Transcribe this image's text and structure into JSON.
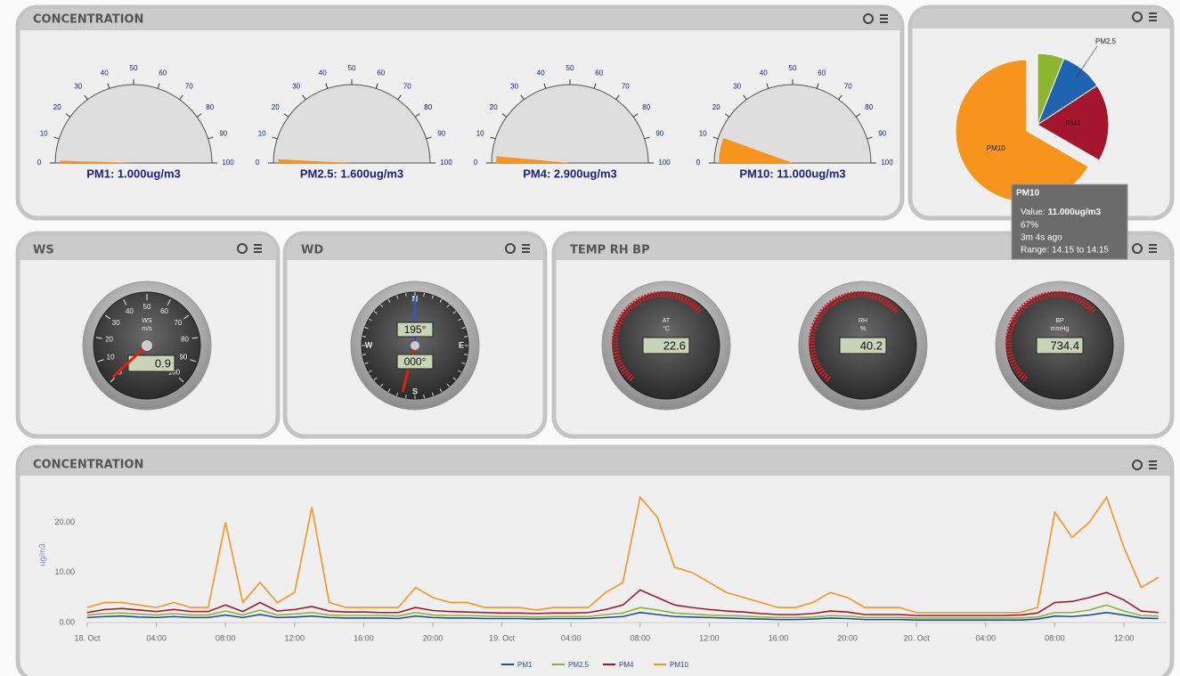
{
  "concentration_gauges": {
    "title": "CONCENTRATION",
    "scale": {
      "lim": [
        0,
        100
      ],
      "ticks": [
        0,
        10,
        20,
        30,
        40,
        50,
        60,
        70,
        80,
        90,
        100
      ]
    },
    "gauges": [
      {
        "value": 1,
        "value_label": "PM1: 1.000ug/m3"
      },
      {
        "value": 1.6,
        "value_label": "PM2.5: 1.600ug/m3"
      },
      {
        "value": 2.9,
        "value_label": "PM4: 2.900ug/m3"
      },
      {
        "value": 11,
        "value_label": "PM10: 11.000ug/m3"
      }
    ],
    "color": "#f7941d"
  },
  "pie": {
    "type": "pie",
    "categories": [
      null,
      "PM2.5",
      "PM4",
      "PM10"
    ],
    "values": [
      1,
      1.6,
      2.9,
      11
    ],
    "colors": [
      "#8db62e",
      "#1e63b0",
      "#a3162d",
      "#f7941d"
    ],
    "tooltip": {
      "title": "PM10",
      "value_prefix": "Value:",
      "value": "11.000ug/m3",
      "percent": "67%",
      "age": "3m 4s ago",
      "range": "Range: 14:15 to 14:15"
    }
  },
  "ws": {
    "title": "WS",
    "label": "WS",
    "unit": "m/s",
    "value": 0.9,
    "lim": [
      0,
      100
    ],
    "ticks": [
      0,
      10,
      20,
      30,
      40,
      50,
      60,
      70,
      80,
      90,
      100
    ]
  },
  "wd": {
    "title": "WD",
    "directions": [
      "N",
      "E",
      "S",
      "W"
    ],
    "readouts": [
      {
        "value": 195,
        "label": "195°"
      },
      {
        "value": 0,
        "label": "000°"
      }
    ]
  },
  "temp_rh_bp": {
    "title": "TEMP RH BP",
    "gauges": [
      {
        "label": "AT",
        "unit": "°C",
        "value": 22.6
      },
      {
        "label": "RH",
        "unit": "%",
        "value": 40.2
      },
      {
        "label": "BP",
        "unit": "mmHg",
        "value": 734.4
      }
    ]
  },
  "chart_data": {
    "type": "line",
    "title": "CONCENTRATION",
    "y_label": "ug/m3",
    "x": [
      0,
      1,
      2,
      3,
      4,
      5,
      6,
      7,
      8,
      9,
      10,
      11,
      12,
      13,
      14,
      15,
      16,
      17,
      18,
      19,
      20,
      21,
      22,
      23,
      24,
      25,
      26,
      27,
      28,
      29,
      30,
      31,
      32,
      33,
      34,
      35,
      36,
      37,
      38,
      39,
      40,
      41,
      42,
      43,
      44,
      45,
      46,
      47,
      48,
      49,
      50,
      51,
      52,
      53,
      54,
      55,
      56,
      57,
      58,
      59,
      60,
      61,
      62
    ],
    "xlim": [
      0,
      62.5
    ],
    "xticks": [
      {
        "value": 0,
        "label": "18. Oct"
      },
      {
        "value": 4,
        "label": "04:00"
      },
      {
        "value": 8,
        "label": "08:00"
      },
      {
        "value": 12,
        "label": "12:00"
      },
      {
        "value": 16,
        "label": "16:00"
      },
      {
        "value": 20,
        "label": "20:00"
      },
      {
        "value": 24,
        "label": "19. Oct"
      },
      {
        "value": 28,
        "label": "04:00"
      },
      {
        "value": 32,
        "label": "08:00"
      },
      {
        "value": 36,
        "label": "12:00"
      },
      {
        "value": 40,
        "label": "16:00"
      },
      {
        "value": 44,
        "label": "20:00"
      },
      {
        "value": 48,
        "label": "20. Oct"
      },
      {
        "value": 52,
        "label": "04:00"
      },
      {
        "value": 56,
        "label": "08:00"
      },
      {
        "value": 60,
        "label": "12:00"
      }
    ],
    "ylim": [
      0,
      27
    ],
    "yticks": [
      {
        "value": 0,
        "label": "0.00"
      },
      {
        "value": 10,
        "label": "10.00"
      },
      {
        "value": 20,
        "label": "20.00"
      }
    ],
    "series": [
      {
        "name": "PM1",
        "color": "#1f4e9c",
        "values": [
          1,
          1.2,
          1.3,
          1.1,
          1,
          1.2,
          1,
          1,
          1.5,
          1,
          1.6,
          1,
          1.1,
          1.3,
          1,
          0.9,
          0.9,
          0.9,
          0.8,
          1.3,
          1,
          0.9,
          0.9,
          0.8,
          0.8,
          0.8,
          0.7,
          0.8,
          0.8,
          0.8,
          1,
          1.2,
          2,
          1.6,
          1.2,
          1.1,
          1,
          0.9,
          0.8,
          0.7,
          0.6,
          0.6,
          0.7,
          0.9,
          0.8,
          0.6,
          0.6,
          0.6,
          0.5,
          0.5,
          0.5,
          0.5,
          0.5,
          0.5,
          0.5,
          0.7,
          1.3,
          1.2,
          1.5,
          2,
          1.5,
          0.9,
          0.8
        ]
      },
      {
        "name": "PM2.5",
        "color": "#8db62e",
        "values": [
          1.5,
          1.8,
          1.9,
          1.7,
          1.5,
          1.8,
          1.5,
          1.5,
          2.3,
          1.5,
          2.5,
          1.5,
          1.7,
          2,
          1.5,
          1.4,
          1.4,
          1.4,
          1.3,
          2,
          1.5,
          1.4,
          1.4,
          1.3,
          1.2,
          1.2,
          1.1,
          1.2,
          1.2,
          1.2,
          1.6,
          1.9,
          3,
          2.5,
          1.9,
          1.7,
          1.5,
          1.4,
          1.3,
          1.1,
          1,
          1,
          1.1,
          1.4,
          1.3,
          1,
          1,
          1,
          0.9,
          0.9,
          0.9,
          0.9,
          0.9,
          0.9,
          0.9,
          1.1,
          2,
          2,
          2.5,
          3.5,
          2.3,
          1.4,
          1.3
        ]
      },
      {
        "name": "PM4",
        "color": "#a3162d",
        "values": [
          2,
          2.6,
          2.8,
          2.5,
          2.2,
          2.6,
          2.2,
          2.2,
          3.5,
          2.2,
          4,
          2.3,
          2.6,
          3.2,
          2.3,
          2.1,
          2.1,
          2,
          2,
          3,
          2.4,
          2.2,
          2.1,
          2,
          1.9,
          1.9,
          1.8,
          1.9,
          1.9,
          2,
          2.6,
          3.5,
          6.5,
          5,
          3.5,
          3,
          2.6,
          2.3,
          2.1,
          1.8,
          1.6,
          1.6,
          1.8,
          2.3,
          2.1,
          1.6,
          1.6,
          1.6,
          1.4,
          1.4,
          1.4,
          1.4,
          1.4,
          1.4,
          1.5,
          1.9,
          4,
          4.2,
          5,
          6,
          4.5,
          2.3,
          2
        ]
      },
      {
        "name": "PM10",
        "color": "#f7941d",
        "values": [
          3,
          4,
          4,
          3.5,
          3,
          4,
          3,
          3,
          20,
          4,
          8,
          4,
          6,
          23,
          4,
          3,
          3,
          3,
          3,
          7,
          5,
          4,
          4,
          3,
          3,
          3,
          2.5,
          3,
          3,
          3,
          6,
          8,
          25,
          21,
          11,
          10,
          8,
          6,
          5,
          4,
          3,
          3,
          4,
          6,
          5,
          3,
          3,
          3,
          2,
          2,
          2,
          2,
          2,
          2,
          2,
          3,
          22,
          17,
          20,
          25,
          15,
          7,
          9
        ]
      }
    ]
  }
}
